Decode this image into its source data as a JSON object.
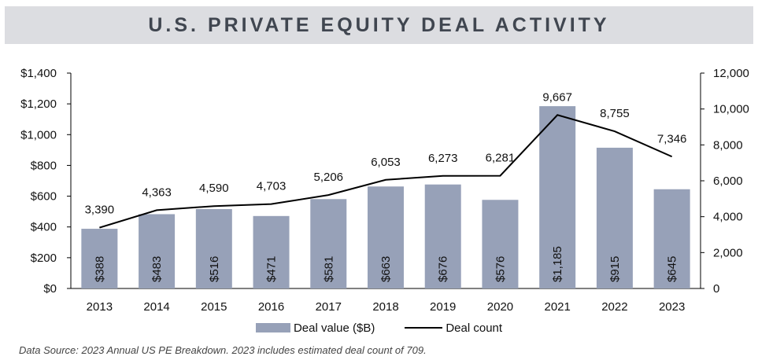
{
  "title": "U.S. PRIVATE EQUITY DEAL ACTIVITY",
  "footnote": "Data Source:  2023 Annual US PE Breakdown.  2023 includes estimated deal count of 709.",
  "legend": {
    "bar_label": "Deal value ($B)",
    "line_label": "Deal count"
  },
  "colors": {
    "bar": "#97a1b8",
    "line": "#000000",
    "title_bg": "#dcdde1",
    "title_text": "#404650"
  },
  "chart_data": {
    "type": "bar",
    "title": "U.S. PRIVATE EQUITY DEAL ACTIVITY",
    "categories": [
      "2013",
      "2014",
      "2015",
      "2016",
      "2017",
      "2018",
      "2019",
      "2020",
      "2021",
      "2022",
      "2023"
    ],
    "series": [
      {
        "name": "Deal value ($B)",
        "type": "bar",
        "axis": "left",
        "values": [
          388,
          483,
          516,
          471,
          581,
          663,
          676,
          576,
          1185,
          915,
          645
        ],
        "labels": [
          "$388",
          "$483",
          "$516",
          "$471",
          "$581",
          "$663",
          "$676",
          "$576",
          "$1,185",
          "$915",
          "$645"
        ]
      },
      {
        "name": "Deal count",
        "type": "line",
        "axis": "right",
        "values": [
          3390,
          4363,
          4590,
          4703,
          5206,
          6053,
          6273,
          6281,
          9667,
          8755,
          7346
        ],
        "labels": [
          "3,390",
          "4,363",
          "4,590",
          "4,703",
          "5,206",
          "6,053",
          "6,273",
          "6,281",
          "9,667",
          "8,755",
          "7,346"
        ]
      }
    ],
    "y_left": {
      "lim": [
        0,
        1400
      ],
      "ticks": [
        0,
        200,
        400,
        600,
        800,
        1000,
        1200,
        1400
      ],
      "tick_labels": [
        "$0",
        "$200",
        "$400",
        "$600",
        "$800",
        "$1,000",
        "$1,200",
        "$1,400"
      ]
    },
    "y_right": {
      "lim": [
        0,
        12000
      ],
      "ticks": [
        0,
        2000,
        4000,
        6000,
        8000,
        10000,
        12000
      ],
      "tick_labels": [
        "0",
        "2,000",
        "4,000",
        "6,000",
        "8,000",
        "10,000",
        "12,000"
      ]
    },
    "grid": false,
    "legend_position": "bottom"
  }
}
